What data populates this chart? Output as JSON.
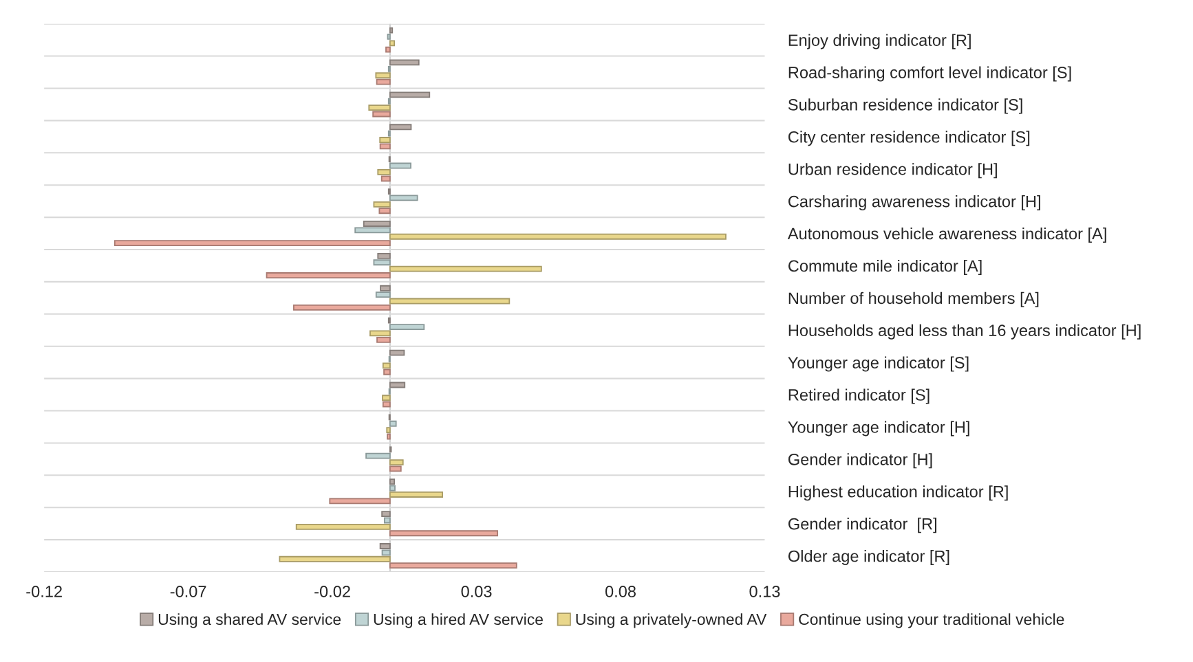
{
  "chart_data": {
    "type": "bar",
    "orientation": "horizontal",
    "categories": [
      "Enjoy driving indicator [R]",
      "Road-sharing comfort level indicator [S]",
      "Suburban residence indicator [S]",
      "City center residence indicator [S]",
      "Urban residence indicator [H]",
      "Carsharing awareness indicator [H]",
      "Autonomous vehicle awareness indicator [A]",
      "Commute mile indicator [A]",
      "Number of household members [A]",
      "Households aged less than 16 years indicator [H]",
      "Younger age indicator [S]",
      "Retired indicator [S]",
      "Younger age indicator [H]",
      "Gender indicator [H]",
      "Highest education indicator [R]",
      "Gender indicator  [R]",
      "Older age indicator [R]"
    ],
    "series": [
      {
        "name": "Using a shared AV service",
        "color": "#b8aca7",
        "values": [
          0.0008,
          0.01,
          0.0137,
          0.0073,
          -0.0003,
          -0.0005,
          -0.0091,
          -0.0042,
          -0.0033,
          -0.0005,
          0.0049,
          0.0051,
          -0.0003,
          0.0004,
          0.0015,
          -0.0028,
          -0.0034
        ]
      },
      {
        "name": "Using a hired AV service",
        "color": "#bfd4d4",
        "values": [
          -0.0008,
          -0.0005,
          -0.0005,
          -0.0005,
          0.0072,
          0.0095,
          -0.0121,
          -0.0056,
          -0.0048,
          0.0118,
          -0.0003,
          -0.0003,
          0.0021,
          -0.0083,
          0.0017,
          -0.0019,
          -0.0027
        ]
      },
      {
        "name": "Using a privately-owned AV",
        "color": "#e9d78c",
        "values": [
          0.0015,
          -0.0049,
          -0.0073,
          -0.0035,
          -0.0042,
          -0.0056,
          0.1165,
          0.0525,
          0.0414,
          -0.0069,
          -0.0024,
          -0.0026,
          -0.0011,
          0.0045,
          0.0182,
          -0.0325,
          -0.0383
        ]
      },
      {
        "name": "Continue using your traditional vehicle",
        "color": "#e9a99d",
        "values": [
          -0.0014,
          -0.0046,
          -0.0059,
          -0.0034,
          -0.0029,
          -0.0037,
          -0.0955,
          -0.0428,
          -0.0334,
          -0.0045,
          -0.0021,
          -0.0024,
          -0.0009,
          0.0038,
          -0.0209,
          0.0373,
          0.0439
        ]
      }
    ],
    "xlim": [
      -0.12,
      0.13
    ],
    "xticks": [
      -0.12,
      -0.07,
      -0.02,
      0.03,
      0.08,
      0.13
    ],
    "grid": "y",
    "legend": "bottom"
  }
}
